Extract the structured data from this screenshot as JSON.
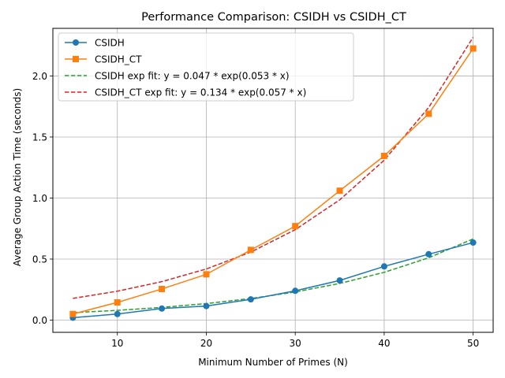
{
  "chart_data": {
    "type": "line",
    "title": "Performance Comparison: CSIDH vs CSIDH_CT",
    "xlabel": "Minimum Number of Primes (N)",
    "ylabel": "Average Group Action Time (seconds)",
    "xlim": [
      2.75,
      52.25
    ],
    "ylim": [
      -0.1,
      2.39
    ],
    "xticks": [
      10,
      20,
      30,
      40,
      50
    ],
    "yticks": [
      0.0,
      0.5,
      1.0,
      1.5,
      2.0
    ],
    "ytick_labels": [
      "0.0",
      "0.5",
      "1.0",
      "1.5",
      "2.0"
    ],
    "grid": true,
    "legend_position": "upper-left",
    "x": [
      5,
      10,
      15,
      20,
      25,
      30,
      35,
      40,
      45,
      50
    ],
    "series": [
      {
        "name": "CSIDH",
        "style": "solid",
        "marker": "circle",
        "color": "#1f77b4",
        "values": [
          0.02,
          0.05,
          0.095,
          0.115,
          0.17,
          0.24,
          0.325,
          0.44,
          0.54,
          0.635
        ]
      },
      {
        "name": "CSIDH_CT",
        "style": "solid",
        "marker": "square",
        "color": "#ff7f0e",
        "values": [
          0.05,
          0.145,
          0.255,
          0.375,
          0.575,
          0.77,
          1.06,
          1.345,
          1.69,
          2.225
        ]
      },
      {
        "name": "CSIDH exp fit: y = 0.047 * exp(0.053 * x)",
        "style": "dashed",
        "marker": "none",
        "color": "#2ca02c",
        "fit": {
          "a": 0.047,
          "b": 0.053
        }
      },
      {
        "name": "CSIDH_CT exp fit: y = 0.134 * exp(0.057 * x)",
        "style": "dashed",
        "marker": "none",
        "color": "#d62728",
        "fit": {
          "a": 0.134,
          "b": 0.057
        }
      }
    ]
  }
}
